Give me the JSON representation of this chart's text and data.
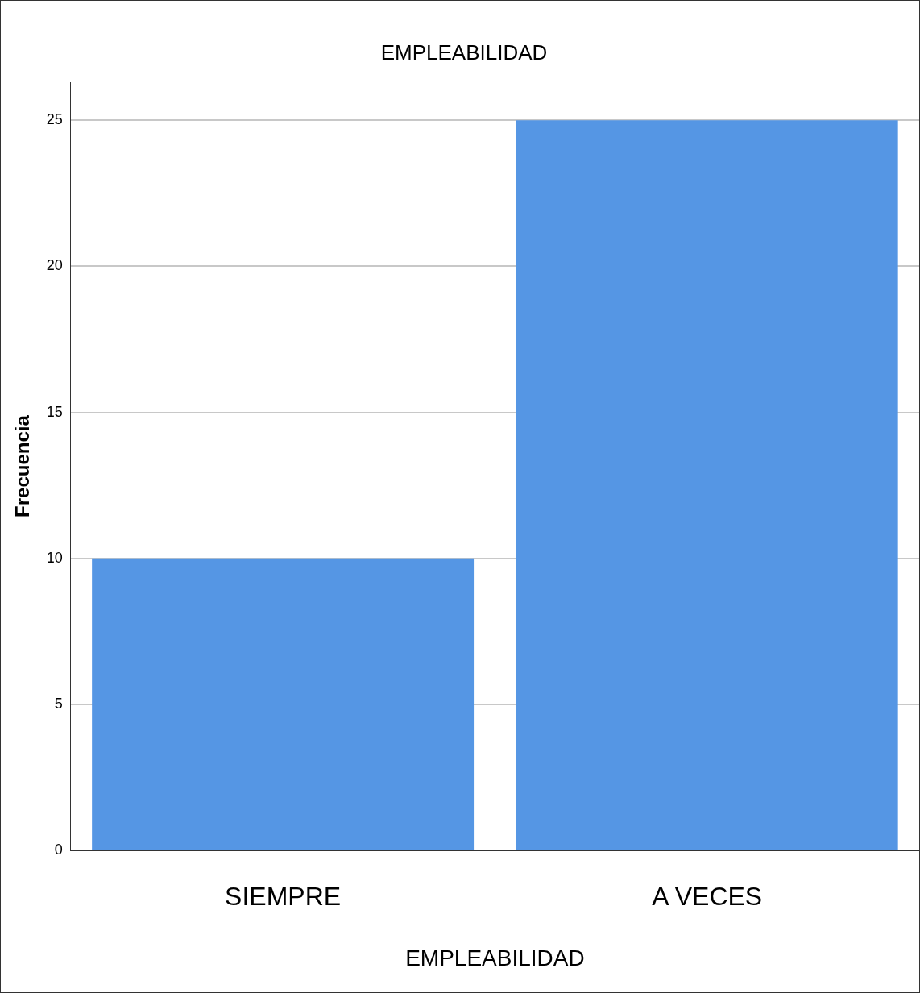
{
  "chart_data": {
    "type": "bar",
    "title": "EMPLEABILIDAD",
    "xlabel": "EMPLEABILIDAD",
    "ylabel": "Frecuencia",
    "categories": [
      "SIEMPRE",
      "A VECES"
    ],
    "values": [
      10,
      25
    ],
    "color": "#5596e4",
    "ylim": [
      0,
      26.3
    ],
    "yticks": [
      0,
      5,
      10,
      15,
      20,
      25
    ],
    "grid": "y",
    "legend": false
  }
}
